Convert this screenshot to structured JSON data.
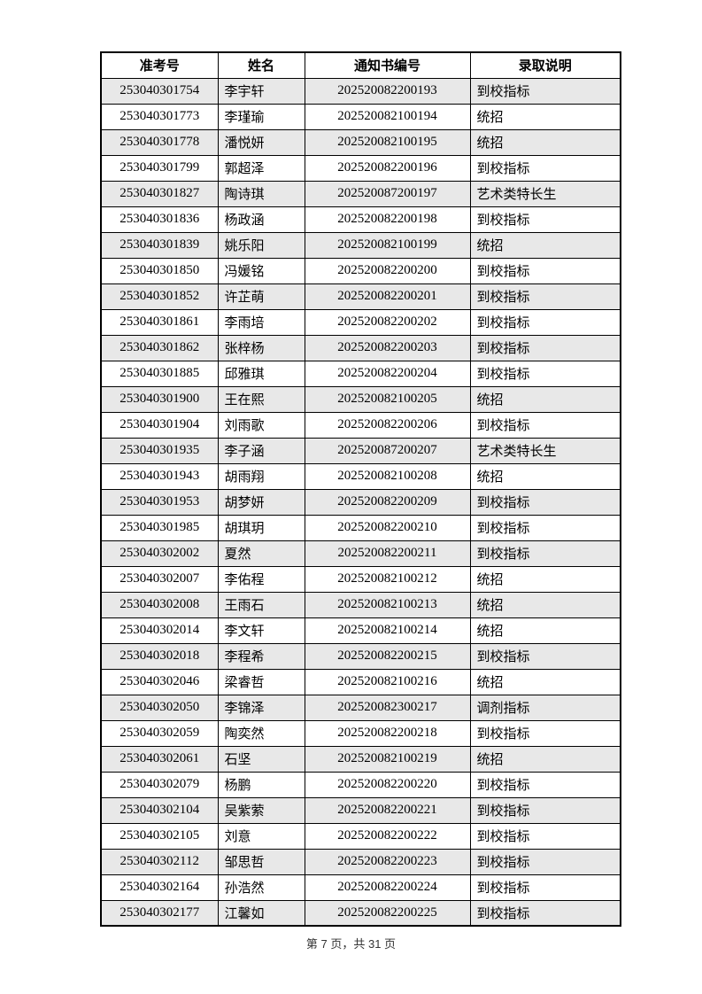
{
  "table": {
    "headers": [
      "准考号",
      "姓名",
      "通知书编号",
      "录取说明"
    ],
    "rows": [
      [
        "253040301754",
        "李宇轩",
        "202520082200193",
        "到校指标"
      ],
      [
        "253040301773",
        "李瑾瑜",
        "202520082100194",
        "统招"
      ],
      [
        "253040301778",
        "潘悦妍",
        "202520082100195",
        "统招"
      ],
      [
        "253040301799",
        "郭超泽",
        "202520082200196",
        "到校指标"
      ],
      [
        "253040301827",
        "陶诗琪",
        "202520087200197",
        "艺术类特长生"
      ],
      [
        "253040301836",
        "杨政涵",
        "202520082200198",
        "到校指标"
      ],
      [
        "253040301839",
        "姚乐阳",
        "202520082100199",
        "统招"
      ],
      [
        "253040301850",
        "冯媛铭",
        "202520082200200",
        "到校指标"
      ],
      [
        "253040301852",
        "许芷萌",
        "202520082200201",
        "到校指标"
      ],
      [
        "253040301861",
        "李雨培",
        "202520082200202",
        "到校指标"
      ],
      [
        "253040301862",
        "张梓杨",
        "202520082200203",
        "到校指标"
      ],
      [
        "253040301885",
        "邱雅琪",
        "202520082200204",
        "到校指标"
      ],
      [
        "253040301900",
        "王在熙",
        "202520082100205",
        "统招"
      ],
      [
        "253040301904",
        "刘雨歌",
        "202520082200206",
        "到校指标"
      ],
      [
        "253040301935",
        "李子涵",
        "202520087200207",
        "艺术类特长生"
      ],
      [
        "253040301943",
        "胡雨翔",
        "202520082100208",
        "统招"
      ],
      [
        "253040301953",
        "胡梦妍",
        "202520082200209",
        "到校指标"
      ],
      [
        "253040301985",
        "胡琪玥",
        "202520082200210",
        "到校指标"
      ],
      [
        "253040302002",
        "夏然",
        "202520082200211",
        "到校指标"
      ],
      [
        "253040302007",
        "李佑程",
        "202520082100212",
        "统招"
      ],
      [
        "253040302008",
        "王雨石",
        "202520082100213",
        "统招"
      ],
      [
        "253040302014",
        "李文轩",
        "202520082100214",
        "统招"
      ],
      [
        "253040302018",
        "李程希",
        "202520082200215",
        "到校指标"
      ],
      [
        "253040302046",
        "梁睿哲",
        "202520082100216",
        "统招"
      ],
      [
        "253040302050",
        "李锦泽",
        "202520082300217",
        "调剂指标"
      ],
      [
        "253040302059",
        "陶奕然",
        "202520082200218",
        "到校指标"
      ],
      [
        "253040302061",
        "石坚",
        "202520082100219",
        "统招"
      ],
      [
        "253040302079",
        "杨鹏",
        "202520082200220",
        "到校指标"
      ],
      [
        "253040302104",
        "吴紫萦",
        "202520082200221",
        "到校指标"
      ],
      [
        "253040302105",
        "刘意",
        "202520082200222",
        "到校指标"
      ],
      [
        "253040302112",
        "邹思哲",
        "202520082200223",
        "到校指标"
      ],
      [
        "253040302164",
        "孙浩然",
        "202520082200224",
        "到校指标"
      ],
      [
        "253040302177",
        "江馨如",
        "202520082200225",
        "到校指标"
      ]
    ],
    "cell_names": [
      "exam-number-cell",
      "name-cell",
      "notice-number-cell",
      "admission-type-cell"
    ]
  },
  "footer": {
    "text": "第 7 页，共 31 页"
  },
  "colors": {
    "row_alt": "#e8e8e8",
    "border": "#000000",
    "footer_text": "#333333"
  }
}
